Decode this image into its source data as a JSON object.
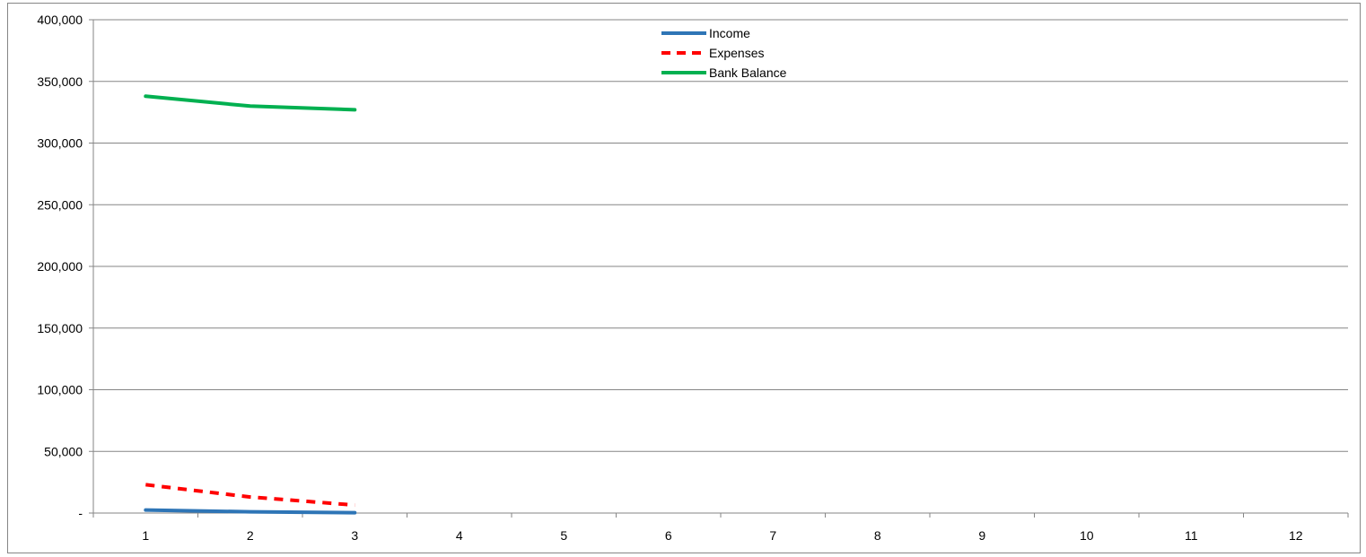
{
  "chart_data": {
    "type": "line",
    "categories": [
      "1",
      "2",
      "3",
      "4",
      "5",
      "6",
      "7",
      "8",
      "9",
      "10",
      "11",
      "12"
    ],
    "y_tick_labels": [
      "-",
      "50,000",
      "100,000",
      "150,000",
      "200,000",
      "250,000",
      "300,000",
      "350,000",
      "400,000"
    ],
    "ylim": [
      0,
      400000
    ],
    "y_step": 50000,
    "grid": true,
    "legend_position": "top-center",
    "title": "",
    "xlabel": "",
    "ylabel": "",
    "series": [
      {
        "name": "Income",
        "color": "#2E75B6",
        "dash": "solid",
        "values": [
          2500,
          1000,
          300,
          null,
          null,
          null,
          null,
          null,
          null,
          null,
          null,
          null
        ]
      },
      {
        "name": "Expenses",
        "color": "#FF0000",
        "dash": "dashed",
        "values": [
          23000,
          13000,
          6500,
          null,
          null,
          null,
          null,
          null,
          null,
          null,
          null,
          null
        ]
      },
      {
        "name": "Bank Balance",
        "color": "#00B050",
        "dash": "solid",
        "values": [
          338000,
          330000,
          327000,
          null,
          null,
          null,
          null,
          null,
          null,
          null,
          null,
          null
        ]
      }
    ]
  }
}
